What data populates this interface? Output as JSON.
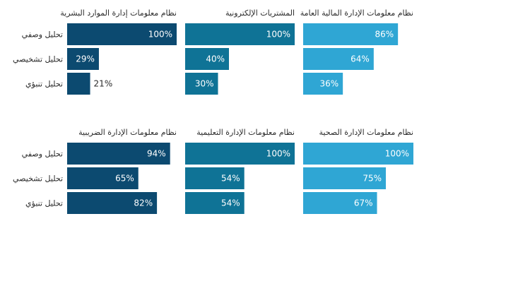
{
  "categories": [
    "تحليل وصفي",
    "تحليل تشخيصي",
    "تحليل تنبؤي"
  ],
  "colors": {
    "col1": "#0c4a70",
    "col2": "#0f7396",
    "col3": "#2fa6d4"
  },
  "chart_data": [
    {
      "type": "bar",
      "orientation": "horizontal",
      "title": "نظام معلومات إدارة الموارد البشرية",
      "categories": [
        "تحليل وصفي",
        "تحليل تشخيصي",
        "تحليل تنبؤي"
      ],
      "values": [
        100,
        29,
        21
      ],
      "unit": "%",
      "xlim": [
        0,
        100
      ]
    },
    {
      "type": "bar",
      "orientation": "horizontal",
      "title": "المشتريات الإلكترونية",
      "categories": [
        "تحليل وصفي",
        "تحليل تشخيصي",
        "تحليل تنبؤي"
      ],
      "values": [
        100,
        40,
        30
      ],
      "unit": "%",
      "xlim": [
        0,
        100
      ]
    },
    {
      "type": "bar",
      "orientation": "horizontal",
      "title": "نظام معلومات الإدارة المالية العامة",
      "categories": [
        "تحليل وصفي",
        "تحليل تشخيصي",
        "تحليل تنبؤي"
      ],
      "values": [
        86,
        64,
        36
      ],
      "unit": "%",
      "xlim": [
        0,
        100
      ]
    },
    {
      "type": "bar",
      "orientation": "horizontal",
      "title": "نظام معلومات الإدارة الضريبية",
      "categories": [
        "تحليل وصفي",
        "تحليل تشخيصي",
        "تحليل تنبؤي"
      ],
      "values": [
        94,
        65,
        82
      ],
      "unit": "%",
      "xlim": [
        0,
        100
      ]
    },
    {
      "type": "bar",
      "orientation": "horizontal",
      "title": "نظام معلومات الإدارة التعليمية",
      "categories": [
        "تحليل وصفي",
        "تحليل تشخيصي",
        "تحليل تنبؤي"
      ],
      "values": [
        100,
        54,
        54
      ],
      "unit": "%",
      "xlim": [
        0,
        100
      ]
    },
    {
      "type": "bar",
      "orientation": "horizontal",
      "title": "نظام معلومات الإدارة الصحية",
      "categories": [
        "تحليل وصفي",
        "تحليل تشخيصي",
        "تحليل تنبؤي"
      ],
      "values": [
        100,
        75,
        67
      ],
      "unit": "%",
      "xlim": [
        0,
        100
      ]
    }
  ]
}
